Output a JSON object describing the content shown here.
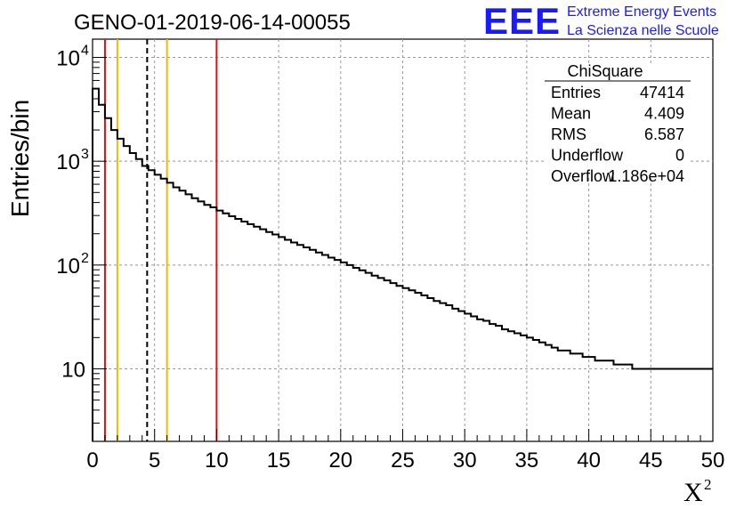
{
  "chart_data": {
    "type": "histogram",
    "title": "GENO-01-2019-06-14-00055",
    "xlabel": "X",
    "xlabel_superscript": "2",
    "ylabel": "Entries/bin",
    "xlim": [
      0,
      50
    ],
    "ylim": [
      2,
      15000
    ],
    "y_scale": "log",
    "grid": true,
    "bin_width": 0.5,
    "x_ticks": [
      "0",
      "5",
      "10",
      "15",
      "20",
      "25",
      "30",
      "35",
      "40",
      "45",
      "50"
    ],
    "y_ticks": [
      {
        "value": 10,
        "label": "10"
      },
      {
        "value": 100,
        "label": "10",
        "exp": "2"
      },
      {
        "value": 1000,
        "label": "10",
        "exp": "3"
      },
      {
        "value": 10000,
        "label": "10",
        "exp": "4"
      }
    ],
    "values": [
      5000,
      3500,
      2600,
      2000,
      1650,
      1400,
      1200,
      1050,
      900,
      820,
      740,
      680,
      620,
      560,
      520,
      480,
      440,
      410,
      380,
      360,
      335,
      315,
      295,
      278,
      262,
      248,
      234,
      221,
      208,
      197,
      186,
      175,
      165,
      156,
      148,
      140,
      132,
      125,
      118,
      112,
      106,
      100,
      94,
      89,
      84,
      79,
      75,
      71,
      67,
      63,
      60,
      57,
      54,
      51,
      48,
      45,
      43,
      41,
      38,
      36,
      34,
      32,
      30,
      29,
      27,
      26,
      24,
      23,
      22,
      21,
      20,
      19,
      18,
      17,
      16,
      15,
      15,
      14,
      14,
      13,
      13,
      12,
      12,
      12,
      11,
      11,
      11,
      10,
      10,
      10,
      10,
      10,
      10,
      10,
      10,
      10,
      10,
      10,
      10,
      10
    ],
    "vertical_lines": [
      {
        "x": 1,
        "color": "#e01010",
        "style": "solid"
      },
      {
        "x": 2,
        "color": "#f5b800",
        "style": "solid"
      },
      {
        "x": 4.4,
        "color": "#000000",
        "style": "dashed"
      },
      {
        "x": 6,
        "color": "#f5b800",
        "style": "solid"
      },
      {
        "x": 10,
        "color": "#e01010",
        "style": "solid"
      }
    ],
    "stats_box": {
      "title": "ChiSquare",
      "rows": [
        {
          "label": "Entries",
          "value": "47414"
        },
        {
          "label": "Mean",
          "value": "4.409"
        },
        {
          "label": "RMS",
          "value": "6.587"
        },
        {
          "label": "Underflow",
          "value": "0"
        },
        {
          "label": "Overflow",
          "value": "1.186e+04"
        }
      ]
    }
  },
  "logo": {
    "mark": "EEE",
    "line1": "Extreme Energy Events",
    "line2": "La Scienza nelle Scuole",
    "color": "#1a1aff"
  }
}
